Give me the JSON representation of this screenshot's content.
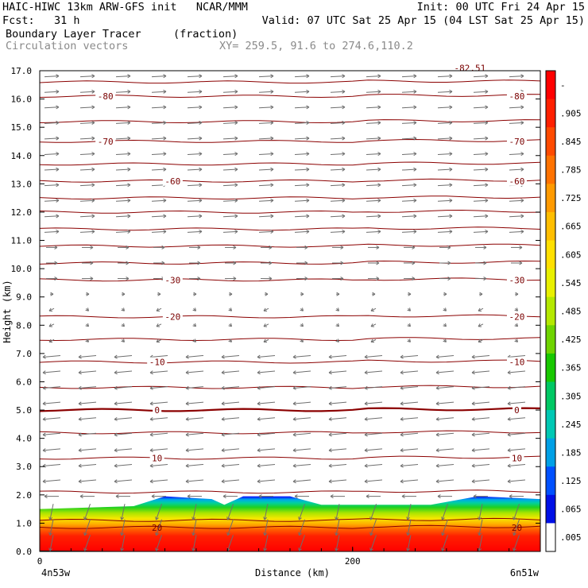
{
  "header": {
    "line1_left": "HAIC-HIWC 13km ARW-GFS init   NCAR/MMM",
    "line1_right": "Init: 00 UTC Fri 24 Apr 15",
    "line2_left": "Fcst:   31 h",
    "line2_right": "Valid: 07 UTC Sat 25 Apr 15 (04 LST Sat 25 Apr 15)",
    "line3_field": "Boundary Layer Tracer",
    "line3_units": "(fraction)",
    "line4_field": "Circulation vectors",
    "line4_xy": "XY= 259.5, 91.6 to 274.6,110.2"
  },
  "chart_data": {
    "type": "heatmap",
    "xlabel": "Distance (km)",
    "ylabel": "Height (km)",
    "xlim": [
      0,
      320
    ],
    "ylim": [
      0.0,
      17.0
    ],
    "x_ticks": [
      {
        "value": 0,
        "label": "0"
      },
      {
        "value": 200,
        "label": "200"
      }
    ],
    "x_end_labels": {
      "left": "4n53w",
      "right": "6n51w"
    },
    "y_ticks": [
      "0.0",
      "1.0",
      "2.0",
      "3.0",
      "4.0",
      "5.0",
      "6.0",
      "7.0",
      "8.0",
      "9.0",
      "10.0",
      "11.0",
      "12.0",
      "13.0",
      "14.0",
      "15.0",
      "16.0",
      "17.0"
    ],
    "tracer_top_km": [
      {
        "x": 0,
        "top": 1.5
      },
      {
        "x": 60,
        "top": 1.6
      },
      {
        "x": 80,
        "top": 1.95
      },
      {
        "x": 110,
        "top": 1.85
      },
      {
        "x": 118,
        "top": 1.65
      },
      {
        "x": 130,
        "top": 1.95
      },
      {
        "x": 160,
        "top": 1.95
      },
      {
        "x": 180,
        "top": 1.65
      },
      {
        "x": 250,
        "top": 1.65
      },
      {
        "x": 280,
        "top": 1.95
      },
      {
        "x": 320,
        "top": 1.85
      }
    ],
    "temperature_contours": [
      {
        "label": "20",
        "height_km": 0.85,
        "label_positions": [
          75,
          305
        ]
      },
      {
        "label": "10",
        "height_km": 3.3,
        "label_positions": [
          75,
          305
        ]
      },
      {
        "label": "0",
        "height_km": 5.0,
        "label_positions": [
          75,
          305
        ]
      },
      {
        "label": "-10",
        "height_km": 6.7,
        "label_positions": [
          75,
          305
        ]
      },
      {
        "label": "-20",
        "height_km": 8.3,
        "label_positions": [
          85,
          305
        ]
      },
      {
        "label": "-30",
        "height_km": 9.6,
        "label_positions": [
          85,
          305
        ]
      },
      {
        "label": "-60",
        "height_km": 13.1,
        "label_positions": [
          85,
          305
        ]
      },
      {
        "label": "-70",
        "height_km": 14.5,
        "label_positions": [
          42,
          305
        ]
      },
      {
        "label": "-80",
        "height_km": 16.1,
        "label_positions": [
          42,
          305
        ]
      },
      {
        "label": "-82.51",
        "height_km": 17.1,
        "label_positions": [
          275
        ]
      }
    ],
    "unlabeled_contour_heights_km": [
      1.1,
      2.1,
      4.2,
      5.8,
      7.5,
      10.2,
      10.8,
      11.4,
      12.0,
      12.5,
      13.7,
      15.2,
      16.6
    ],
    "colorbar": {
      "labels": [
        "-",
        ".905",
        ".845",
        ".785",
        ".725",
        ".665",
        ".605",
        ".545",
        ".485",
        ".425",
        ".365",
        ".305",
        ".245",
        ".185",
        ".125",
        ".065",
        ".005"
      ],
      "colors": [
        "#ff0000",
        "#ff2000",
        "#ff4a00",
        "#ff7200",
        "#ff9a00",
        "#ffbe00",
        "#ffe000",
        "#e8f000",
        "#b4e800",
        "#6fd400",
        "#18c800",
        "#00c864",
        "#00c8b4",
        "#00a0e6",
        "#0050ff",
        "#0010e6",
        "#ffffff"
      ]
    },
    "wind_vectors": {
      "upper_direction": "east",
      "middle_direction": "west",
      "boundary_layer_direction": "down-south"
    }
  }
}
